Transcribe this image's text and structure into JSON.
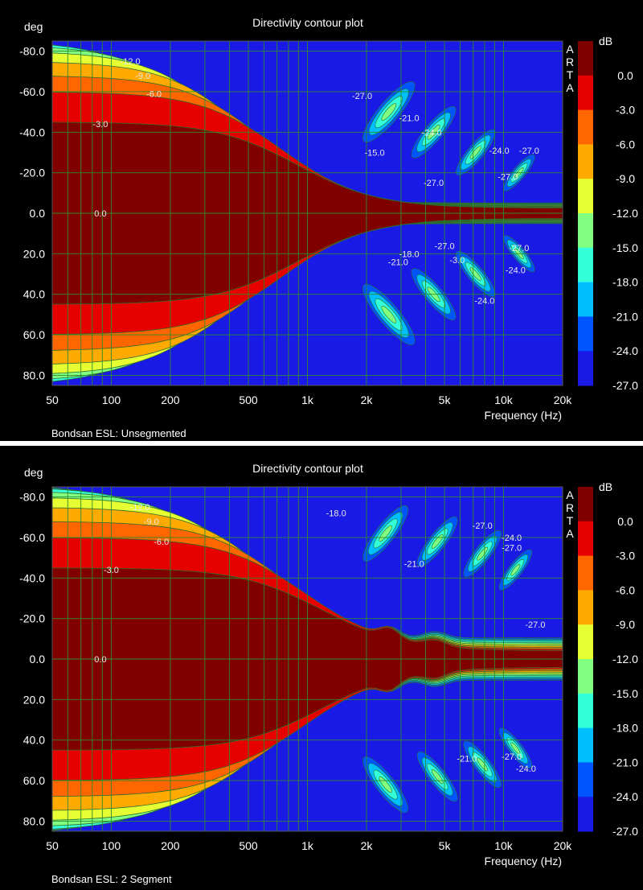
{
  "panels": [
    {
      "caption": "Bondsan ESL: Unsegmented",
      "variant": "unsegmented",
      "chart_data": {
        "type": "heatmap",
        "title": "Directivity contour plot",
        "xlabel": "Frequency (Hz)",
        "ylabel": "deg",
        "xscale": "log",
        "xlim": [
          50,
          20000
        ],
        "ylim": [
          -85,
          85
        ],
        "x_ticks": [
          50,
          100,
          200,
          500,
          1000,
          2000,
          5000,
          10000,
          20000
        ],
        "x_tick_labels": [
          "50",
          "100",
          "200",
          "500",
          "1k",
          "2k",
          "5k",
          "10k",
          "20k"
        ],
        "y_ticks": [
          -80,
          -60,
          -40,
          -20,
          0,
          20,
          40,
          60,
          80
        ],
        "y_tick_labels": [
          "-80.0",
          "-60.0",
          "-40.0",
          "-20.0",
          "0.0",
          "20.0",
          "40.0",
          "60.0",
          "80.0"
        ],
        "colorbar_label": "dB",
        "colorbar_levels": [
          "0.0",
          "-3.0",
          "-6.0",
          "-9.0",
          "-12.0",
          "-15.0",
          "-18.0",
          "-21.0",
          "-24.0",
          "-27.0"
        ],
        "colorbar_colors": [
          "#800000",
          "#e60000",
          "#ff6600",
          "#ffaa00",
          "#e6ff33",
          "#80ff80",
          "#33ffd9",
          "#00bfff",
          "#0055ff",
          "#1a1ae6"
        ],
        "watermark": "ARTA",
        "grid": true,
        "contour_labels": [
          {
            "f": 88,
            "deg": 0,
            "text": "0.0"
          },
          {
            "f": 88,
            "deg": -44,
            "text": "-3.0"
          },
          {
            "f": 165,
            "deg": -59,
            "text": "-6.0"
          },
          {
            "f": 145,
            "deg": -68,
            "text": "-9.0"
          },
          {
            "f": 125,
            "deg": -75,
            "text": "-12.0"
          },
          {
            "f": 1900,
            "deg": -58,
            "text": "-27.0"
          },
          {
            "f": 3300,
            "deg": -47,
            "text": "-21.0"
          },
          {
            "f": 4300,
            "deg": -40,
            "text": "-24.0"
          },
          {
            "f": 2200,
            "deg": -30,
            "text": "-15.0"
          },
          {
            "f": 4400,
            "deg": -15,
            "text": "-27.0"
          },
          {
            "f": 9500,
            "deg": -31,
            "text": "-24.0"
          },
          {
            "f": 13500,
            "deg": -31,
            "text": "-27.0"
          },
          {
            "f": 10500,
            "deg": -18,
            "text": "-27.0"
          },
          {
            "f": 3300,
            "deg": 20,
            "text": "-18.0"
          },
          {
            "f": 2900,
            "deg": 24,
            "text": "-21.0"
          },
          {
            "f": 5000,
            "deg": 16,
            "text": "-27.0"
          },
          {
            "f": 5800,
            "deg": 23,
            "text": "-3.0"
          },
          {
            "f": 11500,
            "deg": 28,
            "text": "-24.0"
          },
          {
            "f": 8000,
            "deg": 43,
            "text": "-24.0"
          },
          {
            "f": 12000,
            "deg": 17,
            "text": "-27.0"
          }
        ]
      }
    },
    {
      "caption": "Bondsan ESL: 2 Segment",
      "variant": "segmented",
      "chart_data": {
        "type": "heatmap",
        "title": "Directivity contour plot",
        "xlabel": "Frequency (Hz)",
        "ylabel": "deg",
        "xscale": "log",
        "xlim": [
          50,
          20000
        ],
        "ylim": [
          -85,
          85
        ],
        "x_ticks": [
          50,
          100,
          200,
          500,
          1000,
          2000,
          5000,
          10000,
          20000
        ],
        "x_tick_labels": [
          "50",
          "100",
          "200",
          "500",
          "1k",
          "2k",
          "5k",
          "10k",
          "20k"
        ],
        "y_ticks": [
          -80,
          -60,
          -40,
          -20,
          0,
          20,
          40,
          60,
          80
        ],
        "y_tick_labels": [
          "-80.0",
          "-60.0",
          "-40.0",
          "-20.0",
          "0.0",
          "20.0",
          "40.0",
          "60.0",
          "80.0"
        ],
        "colorbar_label": "dB",
        "colorbar_levels": [
          "0.0",
          "-3.0",
          "-6.0",
          "-9.0",
          "-12.0",
          "-15.0",
          "-18.0",
          "-21.0",
          "-24.0",
          "-27.0"
        ],
        "colorbar_colors": [
          "#800000",
          "#e60000",
          "#ff6600",
          "#ffaa00",
          "#e6ff33",
          "#80ff80",
          "#33ffd9",
          "#00bfff",
          "#0055ff",
          "#1a1ae6"
        ],
        "watermark": "ARTA",
        "grid": true,
        "contour_labels": [
          {
            "f": 88,
            "deg": 0,
            "text": "0.0"
          },
          {
            "f": 100,
            "deg": -44,
            "text": "-3.0"
          },
          {
            "f": 180,
            "deg": -58,
            "text": "-6.0"
          },
          {
            "f": 160,
            "deg": -68,
            "text": "-9.0"
          },
          {
            "f": 140,
            "deg": -75,
            "text": "-12.0"
          },
          {
            "f": 1400,
            "deg": -72,
            "text": "-18.0"
          },
          {
            "f": 3500,
            "deg": -47,
            "text": "-21.0"
          },
          {
            "f": 7800,
            "deg": -66,
            "text": "-27.0"
          },
          {
            "f": 11000,
            "deg": -60,
            "text": "-24.0"
          },
          {
            "f": 11000,
            "deg": -55,
            "text": "-27.0"
          },
          {
            "f": 14500,
            "deg": -17,
            "text": "-27.0"
          },
          {
            "f": 6500,
            "deg": 49,
            "text": "-21.0"
          },
          {
            "f": 11000,
            "deg": 48,
            "text": "-27.0"
          },
          {
            "f": 13000,
            "deg": 54,
            "text": "-24.0"
          }
        ]
      }
    }
  ]
}
